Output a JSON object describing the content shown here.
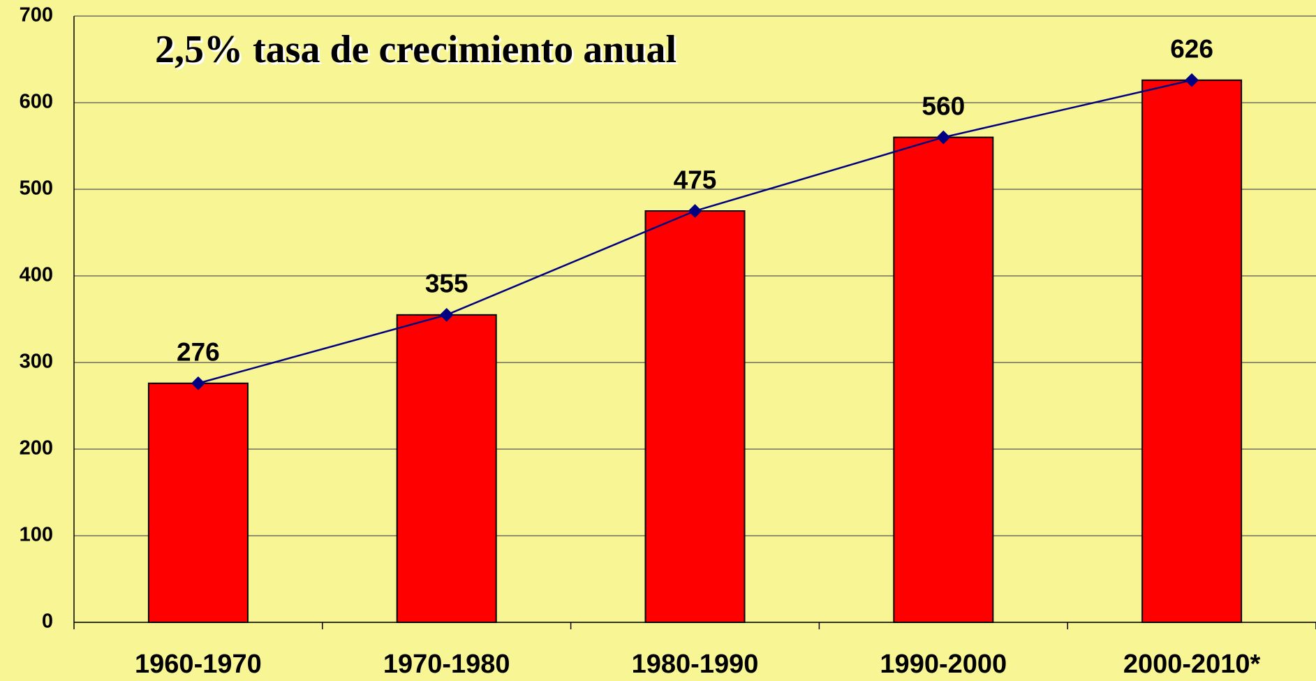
{
  "chart_data": {
    "type": "bar",
    "title": "2,5% tasa de crecimiento anual",
    "categories": [
      "1960-1970",
      "1970-1980",
      "1980-1990",
      "1990-2000",
      "2000-2010*"
    ],
    "values": [
      276,
      355,
      475,
      560,
      626
    ],
    "color": "#ff0000",
    "line_color": "#000080",
    "ylim": [
      0,
      700
    ],
    "yticks": [
      0,
      100,
      200,
      300,
      400,
      500,
      600,
      700
    ],
    "grid": true
  }
}
